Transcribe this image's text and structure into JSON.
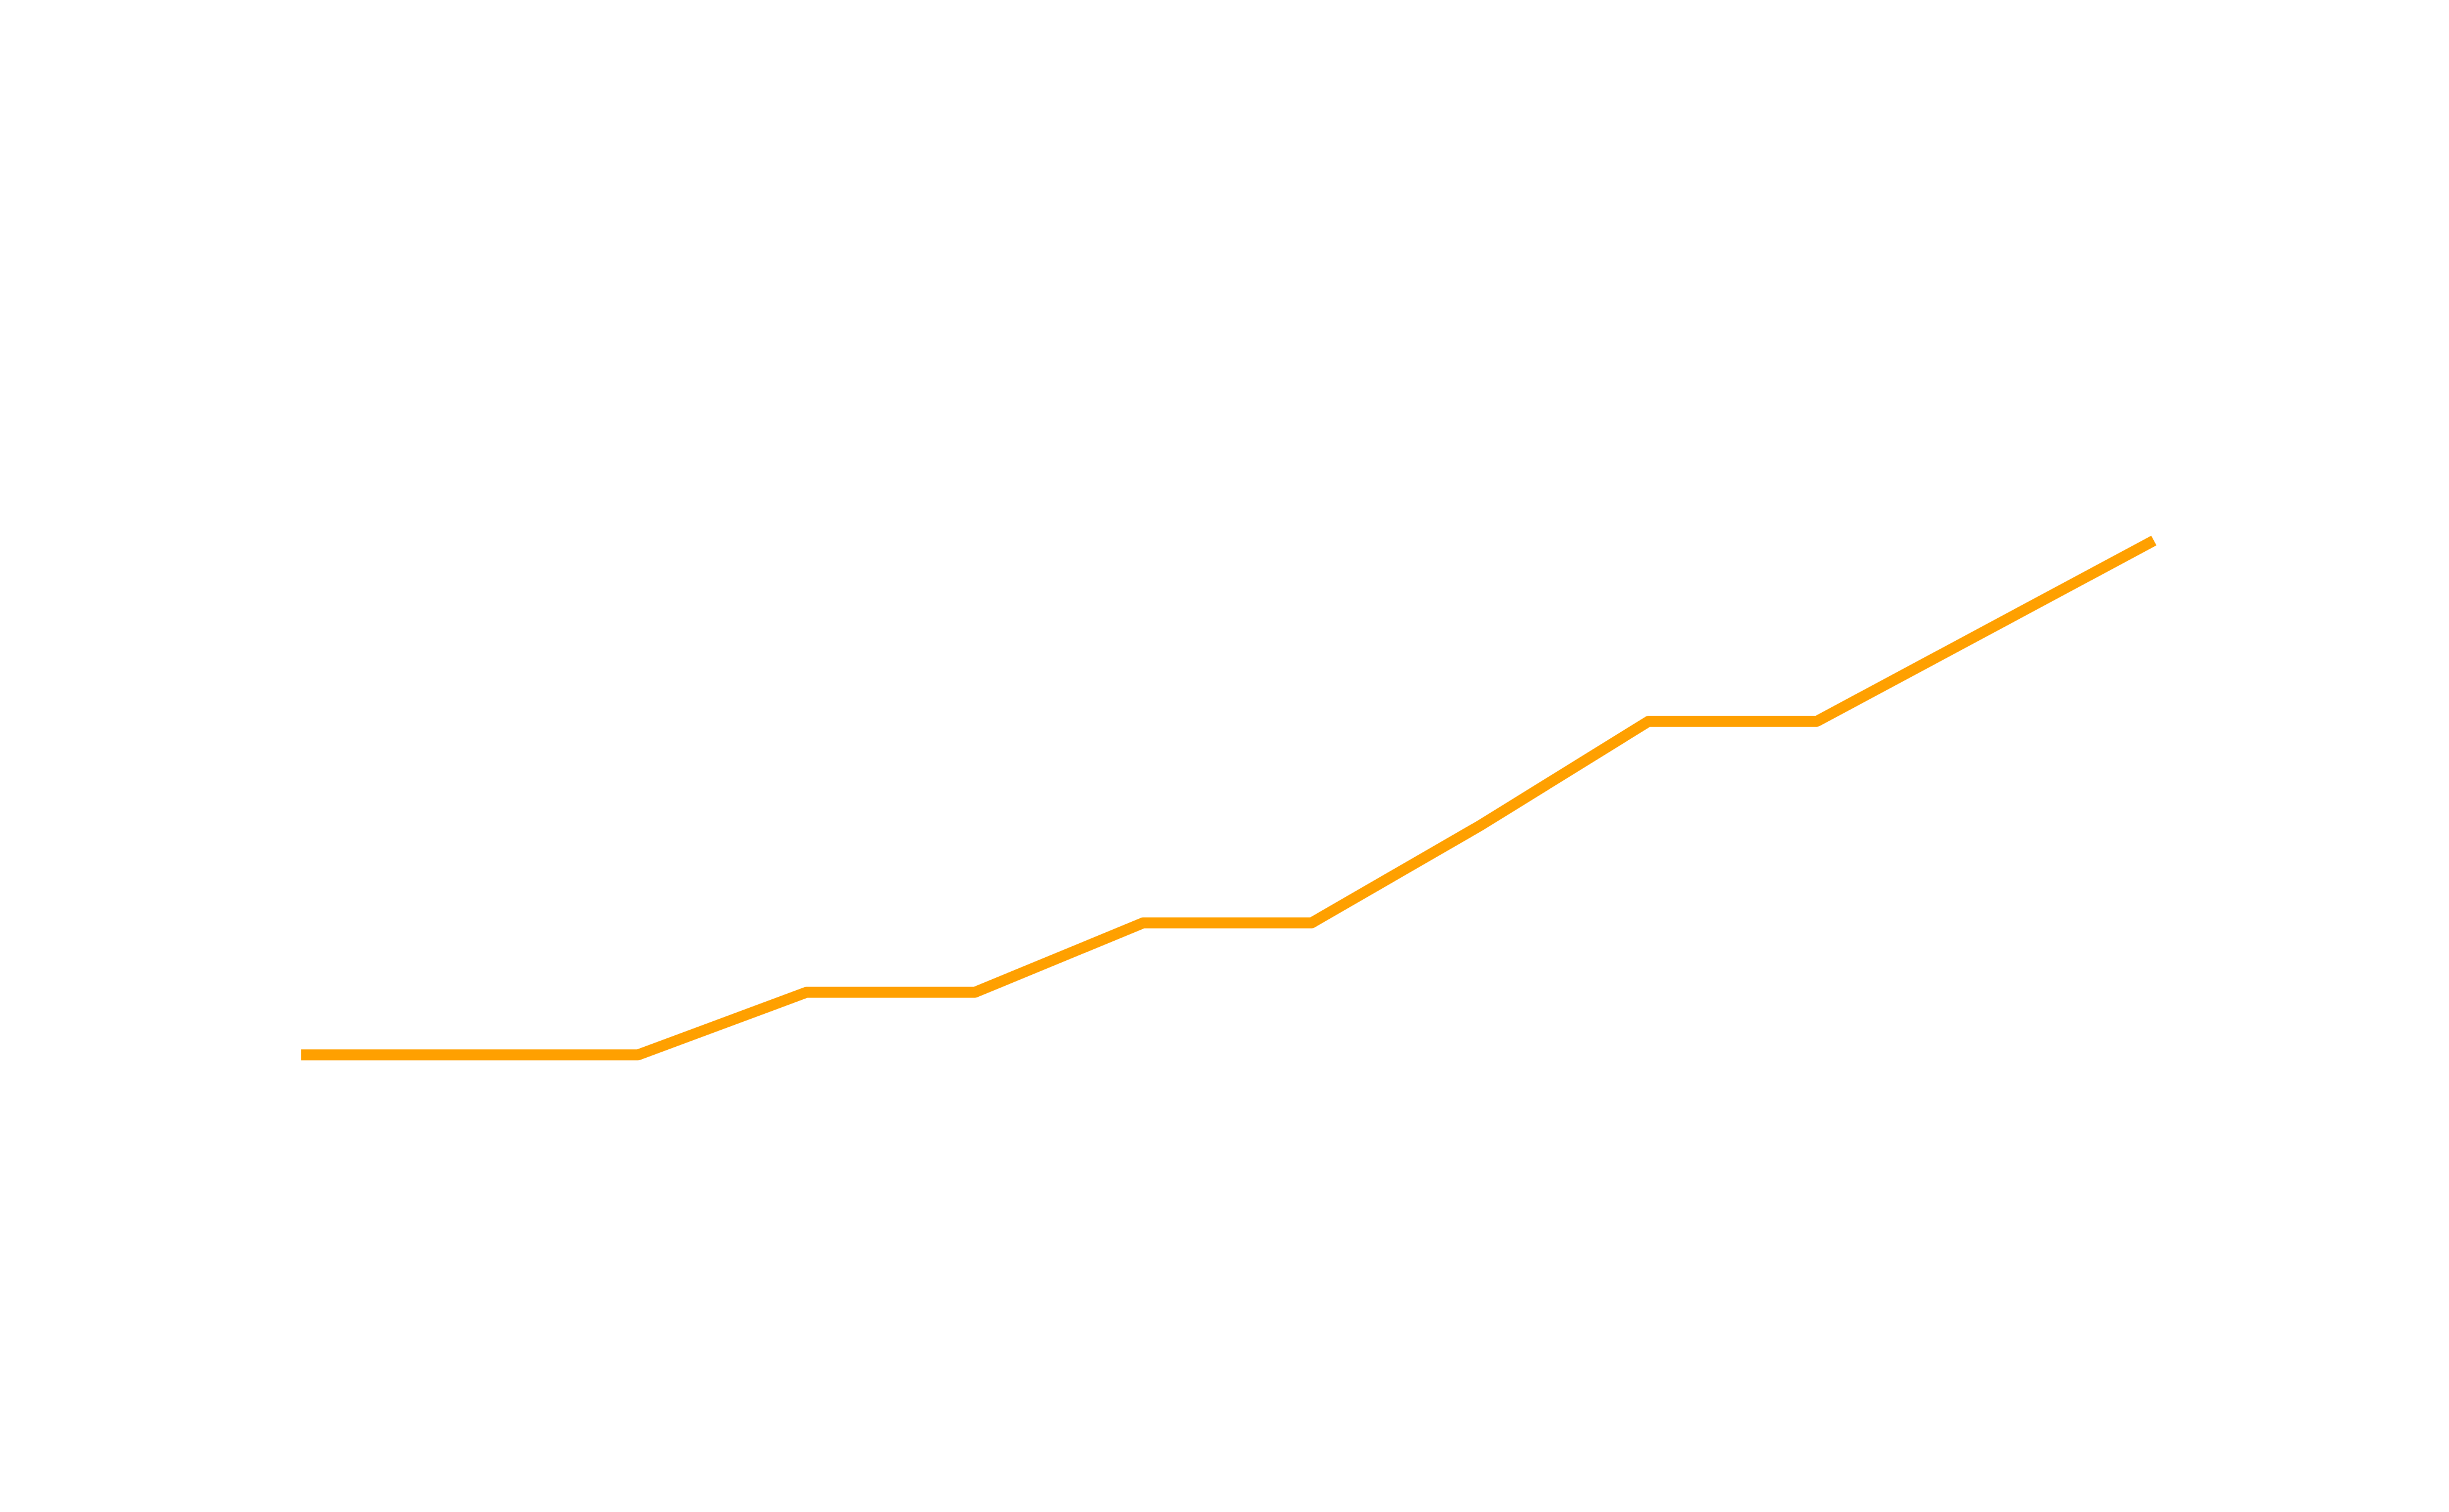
{
  "chart_data": {
    "type": "line",
    "title": "",
    "xlabel": "",
    "ylabel": "",
    "grid": false,
    "legend": "none",
    "x": [
      0,
      1,
      2,
      3,
      4,
      5,
      6,
      7,
      8,
      9,
      10,
      11
    ],
    "xlim": [
      0,
      11
    ],
    "ylim": [
      0,
      100
    ],
    "series": [
      {
        "color": "#FFA000",
        "values": [
          28.5,
          28.5,
          28.5,
          33.0,
          33.0,
          38.0,
          38.0,
          45.0,
          52.5,
          52.5,
          59.0,
          65.5
        ]
      }
    ]
  }
}
